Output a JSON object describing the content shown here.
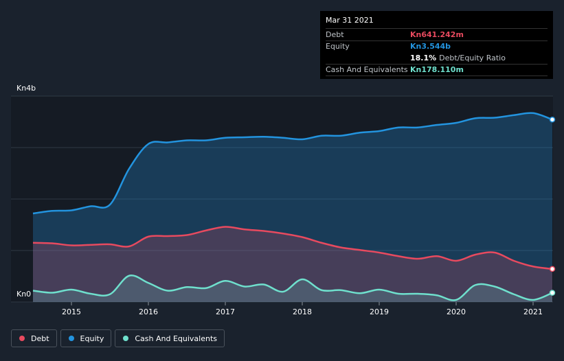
{
  "tooltip": {
    "date": "Mar 31 2021",
    "rows": [
      {
        "key": "Debt",
        "value": "Kn641.242m",
        "color": "#e84a5f"
      },
      {
        "key": "Equity",
        "value": "Kn3.544b",
        "color": "#2394df"
      },
      {
        "key": "",
        "value": "18.1%",
        "sub": "Debt/Equity Ratio",
        "color": "#ffffff"
      },
      {
        "key": "Cash And Equivalents",
        "value": "Kn178.110m",
        "color": "#6fe0cd"
      }
    ]
  },
  "legend": [
    {
      "label": "Debt",
      "color": "#e84a5f"
    },
    {
      "label": "Equity",
      "color": "#2394df"
    },
    {
      "label": "Cash And Equivalents",
      "color": "#6fe0cd"
    }
  ],
  "chart_data": {
    "type": "area",
    "ylim": [
      0,
      4
    ],
    "y_unit": "b",
    "y_ticks_labeled": [
      "Kn0",
      "Kn4b"
    ],
    "x_ticks": [
      "2015",
      "2016",
      "2017",
      "2018",
      "2019",
      "2020",
      "2021"
    ],
    "xlim": [
      2014.5,
      2021.25
    ],
    "grid": true,
    "legend_position": "bottom-left",
    "series": [
      {
        "name": "Equity",
        "color": "#2394df",
        "x": [
          2014.5,
          2014.75,
          2015.0,
          2015.25,
          2015.5,
          2015.75,
          2016.0,
          2016.25,
          2016.5,
          2016.75,
          2017.0,
          2017.25,
          2017.5,
          2017.75,
          2018.0,
          2018.25,
          2018.5,
          2018.75,
          2019.0,
          2019.25,
          2019.5,
          2019.75,
          2020.0,
          2020.25,
          2020.5,
          2020.75,
          2021.0,
          2021.25
        ],
        "values": [
          1.72,
          1.77,
          1.78,
          1.86,
          1.89,
          2.59,
          3.07,
          3.1,
          3.14,
          3.14,
          3.19,
          3.2,
          3.21,
          3.19,
          3.16,
          3.23,
          3.23,
          3.29,
          3.32,
          3.39,
          3.39,
          3.44,
          3.48,
          3.57,
          3.58,
          3.63,
          3.67,
          3.544
        ]
      },
      {
        "name": "Debt",
        "color": "#e84a5f",
        "x": [
          2014.5,
          2014.75,
          2015.0,
          2015.25,
          2015.5,
          2015.75,
          2016.0,
          2016.25,
          2016.5,
          2016.75,
          2017.0,
          2017.25,
          2017.5,
          2017.75,
          2018.0,
          2018.25,
          2018.5,
          2018.75,
          2019.0,
          2019.25,
          2019.5,
          2019.75,
          2020.0,
          2020.25,
          2020.5,
          2020.75,
          2021.0,
          2021.25
        ],
        "values": [
          1.15,
          1.14,
          1.1,
          1.11,
          1.12,
          1.08,
          1.27,
          1.28,
          1.3,
          1.39,
          1.46,
          1.41,
          1.38,
          1.33,
          1.26,
          1.15,
          1.06,
          1.01,
          0.96,
          0.89,
          0.84,
          0.89,
          0.8,
          0.92,
          0.96,
          0.8,
          0.69,
          0.641
        ]
      },
      {
        "name": "Cash And Equivalents",
        "color": "#6fe0cd",
        "x": [
          2014.5,
          2014.75,
          2015.0,
          2015.25,
          2015.5,
          2015.75,
          2016.0,
          2016.25,
          2016.5,
          2016.75,
          2017.0,
          2017.25,
          2017.5,
          2017.75,
          2018.0,
          2018.25,
          2018.5,
          2018.75,
          2019.0,
          2019.25,
          2019.5,
          2019.75,
          2020.0,
          2020.25,
          2020.5,
          2020.75,
          2021.0,
          2021.25
        ],
        "values": [
          0.22,
          0.18,
          0.24,
          0.16,
          0.15,
          0.51,
          0.37,
          0.22,
          0.29,
          0.27,
          0.41,
          0.3,
          0.34,
          0.2,
          0.44,
          0.23,
          0.23,
          0.17,
          0.24,
          0.16,
          0.16,
          0.13,
          0.04,
          0.33,
          0.3,
          0.15,
          0.04,
          0.178
        ]
      }
    ]
  }
}
